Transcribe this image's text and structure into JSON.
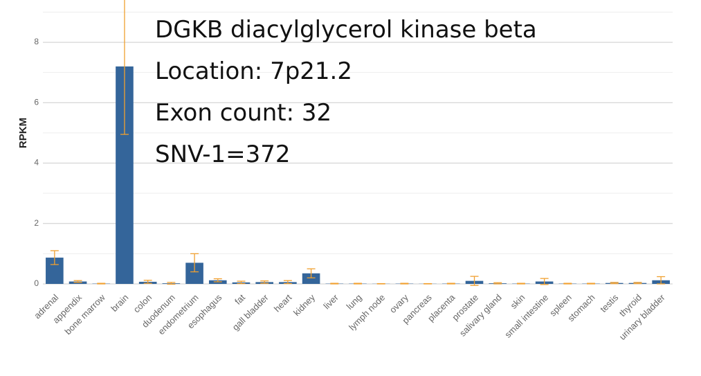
{
  "chart_data": {
    "type": "bar",
    "annotations": [
      "DGKB diacylglycerol kinase beta",
      "Location: 7p21.2",
      "Exon count: 32",
      "SNV-1=372"
    ],
    "y_label": "RPKM",
    "categories": [
      "adrenal",
      "appendix",
      "bone marrow",
      "brain",
      "colon",
      "duodenum",
      "endometrium",
      "esophagus",
      "fat",
      "gall bladder",
      "heart",
      "kidney",
      "liver",
      "lung",
      "lymph node",
      "ovary",
      "pancreas",
      "placenta",
      "prostate",
      "salivary gland",
      "skin",
      "small intestine",
      "spleen",
      "stomach",
      "testis",
      "thyroid",
      "urinary bladder"
    ],
    "values": [
      0.87,
      0.08,
      0.01,
      7.2,
      0.07,
      0.02,
      0.7,
      0.12,
      0.05,
      0.06,
      0.06,
      0.35,
      0.01,
      0.01,
      0.005,
      0.01,
      0.005,
      0.01,
      0.1,
      0.02,
      0.01,
      0.08,
      0.01,
      0.01,
      0.03,
      0.03,
      0.12
    ],
    "errors": [
      0.23,
      0.03,
      0.01,
      2.25,
      0.05,
      0.03,
      0.3,
      0.05,
      0.04,
      0.04,
      0.05,
      0.15,
      0.01,
      0.01,
      0.005,
      0.01,
      0.005,
      0.01,
      0.15,
      0.02,
      0.01,
      0.1,
      0.01,
      0.01,
      0.02,
      0.02,
      0.12
    ],
    "color": "#34659a",
    "error_color": "#f0a030",
    "ylim": [
      0,
      9.4
    ],
    "yticks": [
      0,
      2,
      4,
      6,
      8
    ],
    "minor_grid": [
      1,
      3,
      5,
      7,
      9
    ],
    "grid": true
  }
}
